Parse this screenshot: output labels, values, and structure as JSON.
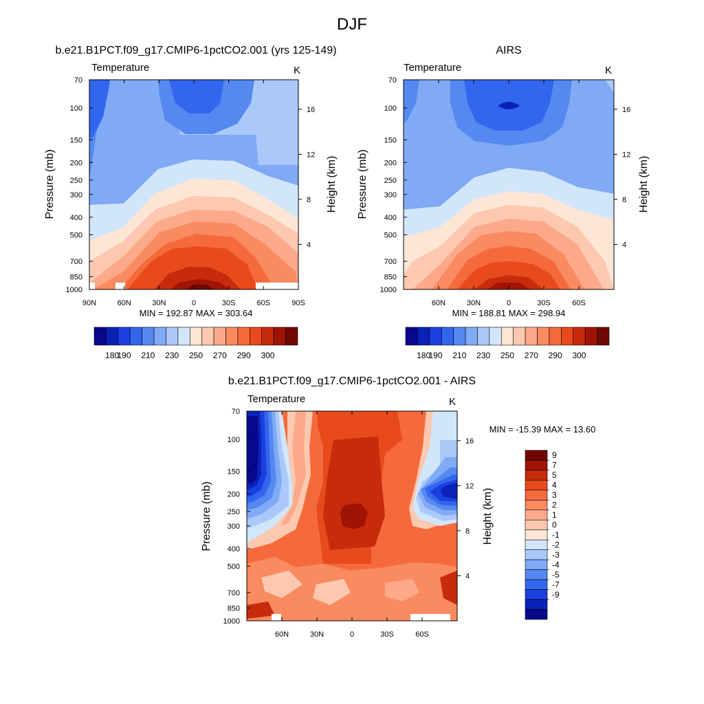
{
  "title": "DJF",
  "colors": {
    "abs_scale": [
      "#08088c",
      "#0a22b8",
      "#1c3fe0",
      "#3366ee",
      "#5588f0",
      "#80aaf5",
      "#aac8fa",
      "#d2e6fb",
      "#fde6d6",
      "#fcc8b0",
      "#fca98a",
      "#fa8a60",
      "#f56a3c",
      "#e84a1c",
      "#c82a0c",
      "#a01406",
      "#700804"
    ],
    "diff_scale": [
      "#08088c",
      "#0a22b8",
      "#1c3fe0",
      "#3366ee",
      "#5588f0",
      "#80aaf5",
      "#aac8fa",
      "#d2e6fb",
      "#fde6d6",
      "#fcc8b0",
      "#fca98a",
      "#fa8a60",
      "#f56a3c",
      "#e84a1c",
      "#c82a0c",
      "#a01406",
      "#700804"
    ]
  },
  "chart_data": [
    {
      "type": "heatmap",
      "title": "b.e21.B1PCT.f09_g17.CMIP6-1pctCO2.001 (yrs 125-149)",
      "variable_label": "Temperature",
      "units": "K",
      "xlabel": "",
      "ylabel": "Pressure (mb)",
      "ylabel_right": "Height (km)",
      "x_ticks": [
        "90N",
        "60N",
        "30N",
        "0",
        "30S",
        "60S",
        "90S"
      ],
      "y_ticks": [
        "70",
        "100",
        "150",
        "200",
        "250",
        "300",
        "400",
        "500",
        "700",
        "850",
        "1000"
      ],
      "y_right_ticks": [
        "16",
        "12",
        "8",
        "4"
      ],
      "min": 192.87,
      "max": 303.64,
      "stats_text": "MIN = 192.87  MAX = 303.64",
      "colorbar_labels": [
        "180",
        "190",
        "210",
        "230",
        "250",
        "270",
        "290",
        "300"
      ],
      "sample_fields": [
        {
          "lat": 0,
          "pressure": 1000,
          "value": 300
        },
        {
          "lat": 0,
          "pressure": 100,
          "value": 192
        },
        {
          "lat": 90,
          "pressure": 70,
          "value": 200
        }
      ]
    },
    {
      "type": "heatmap",
      "title": "AIRS",
      "variable_label": "Temperature",
      "units": "K",
      "xlabel": "",
      "ylabel": "Pressure (mb)",
      "ylabel_right": "Height (km)",
      "x_ticks": [
        "60N",
        "30N",
        "0",
        "30S",
        "60S"
      ],
      "y_ticks": [
        "70",
        "100",
        "150",
        "200",
        "250",
        "300",
        "400",
        "500",
        "700",
        "850",
        "1000"
      ],
      "y_right_ticks": [
        "16",
        "12",
        "8",
        "4"
      ],
      "min": 188.81,
      "max": 298.94,
      "stats_text": "MIN = 188.81  MAX = 298.94",
      "colorbar_labels": [
        "180",
        "190",
        "210",
        "230",
        "250",
        "270",
        "290",
        "300"
      ],
      "sample_fields": [
        {
          "lat": 0,
          "pressure": 1000,
          "value": 298
        },
        {
          "lat": 0,
          "pressure": 100,
          "value": 189
        }
      ]
    },
    {
      "type": "heatmap",
      "title": "b.e21.B1PCT.f09_g17.CMIP6-1pctCO2.001 - AIRS",
      "variable_label": "Temperature",
      "units": "K",
      "xlabel": "",
      "ylabel": "Pressure (mb)",
      "ylabel_right": "Height (km)",
      "x_ticks": [
        "60N",
        "30N",
        "0",
        "30S",
        "60S"
      ],
      "y_ticks": [
        "70",
        "100",
        "150",
        "200",
        "250",
        "300",
        "400",
        "500",
        "700",
        "850",
        "1000"
      ],
      "y_right_ticks": [
        "16",
        "12",
        "8",
        "4"
      ],
      "min": -15.39,
      "max": 13.6,
      "stats_text": "MIN = -15.39  MAX =  13.60",
      "colorbar_labels": [
        "9",
        "7",
        "5",
        "4",
        "3",
        "2",
        "1",
        "0",
        "-1",
        "-2",
        "-3",
        "-4",
        "-5",
        "-7",
        "-9"
      ],
      "sample_fields": [
        {
          "lat": 0,
          "pressure": 250,
          "value": 10
        },
        {
          "lat": 80,
          "pressure": 150,
          "value": -12
        },
        {
          "lat": -80,
          "pressure": 200,
          "value": -10
        }
      ]
    }
  ]
}
